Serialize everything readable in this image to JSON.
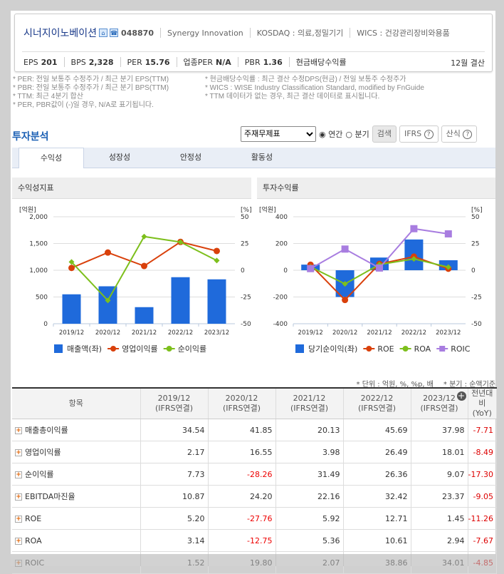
{
  "company": {
    "name": "시너지이노베이션",
    "code": "048870",
    "english": "Synergy Innovation",
    "market": "KOSDAQ : 의료,정밀기기",
    "wics": "WICS : 건강관리장비와용품",
    "icons": [
      "home-icon",
      "phone-icon"
    ]
  },
  "metrics": [
    {
      "label": "EPS",
      "value": "201"
    },
    {
      "label": "BPS",
      "value": "2,328"
    },
    {
      "label": "PER",
      "value": "15.76"
    },
    {
      "label": "업종PER",
      "value": "N/A"
    },
    {
      "label": "PBR",
      "value": "1.36"
    },
    {
      "label": "현금배당수익률",
      "value": ""
    }
  ],
  "settlement": "12월 결산",
  "notes_left": [
    "* PER: 전일 보통주 수정주가 / 최근 분기 EPS(TTM)",
    "* PBR: 전일 보통주 수정주가 / 최근 분기 BPS(TTM)",
    "* TTM: 최근 4분기 합산",
    "* PER, PBR값이 (-)일 경우, N/A로 표기됩니다."
  ],
  "notes_right": [
    "* 현금배당수익률 : 최근 결산 수정DPS(현금) / 전일 보통주 수정주가",
    "* WICS : WISE Industry Classification Standard, modified by FnGuide",
    "* TTM 데이터가 없는 경우, 최근 결산 데이터로 표시됩니다."
  ],
  "section_title": "투자분석",
  "controls": {
    "select": "주재무제표",
    "radio_annual": "연간",
    "radio_quarter": "분기",
    "search": "검색",
    "ifrs": "IFRS",
    "formula": "산식"
  },
  "tabs": [
    "수익성",
    "성장성",
    "안정성",
    "활동성"
  ],
  "chart_data": [
    {
      "title": "수익성지표",
      "type": "bar+line",
      "categories": [
        "2019/12",
        "2020/12",
        "2021/12",
        "2022/12",
        "2023/12"
      ],
      "ylabel_left": "[억원]",
      "ylabel_right": "[%]",
      "ylim_left": [
        0,
        2000
      ],
      "yticks_left": [
        "0",
        "500",
        "1,000",
        "1,500",
        "2,000"
      ],
      "ylim_right": [
        -50,
        50
      ],
      "yticks_right": [
        "-50",
        "-25",
        "0",
        "25",
        "50"
      ],
      "grid": true,
      "legend": "bottom",
      "series": [
        {
          "name": "매출액(좌)",
          "kind": "bar",
          "axis": "left",
          "color": "#1f6adb",
          "values": [
            550,
            700,
            310,
            870,
            830
          ]
        },
        {
          "name": "영업이익률",
          "kind": "line",
          "axis": "right",
          "color": "#d9400b",
          "marker": "circle",
          "values": [
            2.17,
            16.55,
            3.98,
            26.49,
            18.01
          ]
        },
        {
          "name": "순이익률",
          "kind": "line",
          "axis": "right",
          "color": "#7dbf1c",
          "marker": "diamond",
          "values": [
            7.73,
            -28.26,
            31.49,
            26.36,
            9.07
          ]
        }
      ]
    },
    {
      "title": "투자수익률",
      "type": "bar+line",
      "categories": [
        "2019/12",
        "2020/12",
        "2021/12",
        "2022/12",
        "2023/12"
      ],
      "ylabel_left": "[억원]",
      "ylabel_right": "[%]",
      "ylim_left": [
        -400,
        400
      ],
      "yticks_left": [
        "-400",
        "-200",
        "0",
        "200",
        "400"
      ],
      "ylim_right": [
        -50,
        50
      ],
      "yticks_right": [
        "-50",
        "-25",
        "0",
        "25",
        "50"
      ],
      "grid": true,
      "legend": "bottom",
      "series": [
        {
          "name": "당기순이익(좌)",
          "kind": "bar",
          "axis": "left",
          "color": "#1f6adb",
          "values": [
            42,
            -200,
            95,
            230,
            75
          ]
        },
        {
          "name": "ROE",
          "kind": "line",
          "axis": "right",
          "color": "#d9400b",
          "marker": "circle",
          "values": [
            5.2,
            -27.76,
            5.92,
            12.71,
            1.45
          ]
        },
        {
          "name": "ROA",
          "kind": "line",
          "axis": "right",
          "color": "#7dbf1c",
          "marker": "diamond",
          "values": [
            3.14,
            -12.75,
            5.36,
            10.61,
            2.94
          ]
        },
        {
          "name": "ROIC",
          "kind": "line",
          "axis": "right",
          "color": "#a87de0",
          "marker": "square",
          "values": [
            1.52,
            19.8,
            2.07,
            38.86,
            34.01
          ]
        }
      ]
    }
  ],
  "units_note": "* 단위 : 억원, %, %p, 배",
  "quarter_note": "* 분기 : 순액기준",
  "table": {
    "header_item": "항목",
    "columns": [
      [
        "2019/12",
        "(IFRS연결)"
      ],
      [
        "2020/12",
        "(IFRS연결)"
      ],
      [
        "2021/12",
        "(IFRS연결)"
      ],
      [
        "2022/12",
        "(IFRS연결)"
      ],
      [
        "2023/12",
        "(IFRS연결)"
      ]
    ],
    "yoy": [
      "전년대비",
      "(YoY)"
    ],
    "rows": [
      {
        "label": "매출총이익률",
        "values": [
          "34.54",
          "41.85",
          "20.13",
          "45.69",
          "37.98"
        ],
        "yoy": "-7.71"
      },
      {
        "label": "영업이익률",
        "values": [
          "2.17",
          "16.55",
          "3.98",
          "26.49",
          "18.01"
        ],
        "yoy": "-8.49"
      },
      {
        "label": "순이익률",
        "values": [
          "7.73",
          "-28.26",
          "31.49",
          "26.36",
          "9.07"
        ],
        "yoy": "-17.30"
      },
      {
        "label": "EBITDA마진율",
        "values": [
          "10.87",
          "24.20",
          "22.16",
          "32.42",
          "23.37"
        ],
        "yoy": "-9.05"
      },
      {
        "label": "ROE",
        "values": [
          "5.20",
          "-27.76",
          "5.92",
          "12.71",
          "1.45"
        ],
        "yoy": "-11.26"
      },
      {
        "label": "ROA",
        "values": [
          "3.14",
          "-12.75",
          "5.36",
          "10.61",
          "2.94"
        ],
        "yoy": "-7.67"
      },
      {
        "label": "ROIC",
        "values": [
          "1.52",
          "19.80",
          "2.07",
          "38.86",
          "34.01"
        ],
        "yoy": "-4.85"
      }
    ]
  }
}
